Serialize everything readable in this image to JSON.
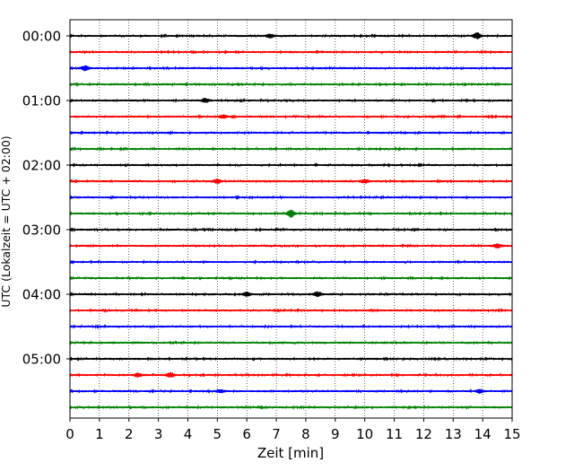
{
  "chart_data": {
    "type": "line",
    "subtype": "helicorder",
    "xlabel": "Zeit  [min]",
    "ylabel": "UTC (Lokalzeit = UTC + 02:00)",
    "xlim": [
      0,
      15
    ],
    "x_ticks": [
      0,
      1,
      2,
      3,
      4,
      5,
      6,
      7,
      8,
      9,
      10,
      11,
      12,
      13,
      14,
      15
    ],
    "y_tick_labels": [
      "00:00",
      "01:00",
      "02:00",
      "03:00",
      "04:00",
      "05:00"
    ],
    "y_tick_rows": [
      0,
      4,
      8,
      12,
      16,
      20
    ],
    "vertical_grid": true,
    "trace_count": 24,
    "trace_minutes": 15,
    "trace_colors": [
      "#000000",
      "#ff0000",
      "#0000ff",
      "#008000"
    ],
    "events": [
      {
        "row": 0,
        "minute": 13.8,
        "amplitude": 0.38
      },
      {
        "row": 0,
        "minute": 6.8,
        "amplitude": 0.22
      },
      {
        "row": 2,
        "minute": 0.5,
        "amplitude": 0.28
      },
      {
        "row": 4,
        "minute": 4.6,
        "amplitude": 0.25
      },
      {
        "row": 5,
        "minute": 5.2,
        "amplitude": 0.22
      },
      {
        "row": 9,
        "minute": 5.0,
        "amplitude": 0.25
      },
      {
        "row": 9,
        "minute": 10.0,
        "amplitude": 0.22
      },
      {
        "row": 11,
        "minute": 7.5,
        "amplitude": 0.4
      },
      {
        "row": 13,
        "minute": 14.5,
        "amplitude": 0.25
      },
      {
        "row": 16,
        "minute": 8.4,
        "amplitude": 0.3
      },
      {
        "row": 16,
        "minute": 6.0,
        "amplitude": 0.25
      },
      {
        "row": 21,
        "minute": 3.4,
        "amplitude": 0.3
      },
      {
        "row": 21,
        "minute": 2.3,
        "amplitude": 0.22
      },
      {
        "row": 22,
        "minute": 5.1,
        "amplitude": 0.2
      },
      {
        "row": 22,
        "minute": 13.9,
        "amplitude": 0.2
      }
    ]
  }
}
